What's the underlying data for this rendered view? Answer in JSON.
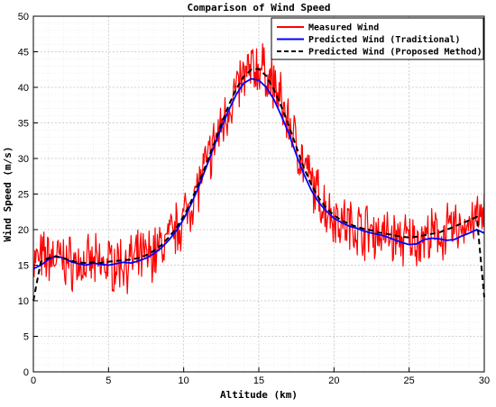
{
  "chart_data": {
    "type": "line",
    "title": "Comparison of Wind Speed",
    "xlabel": "Altitude (km)",
    "ylabel": "Wind Speed (m/s)",
    "xlim": [
      0,
      30
    ],
    "ylim": [
      0,
      50
    ],
    "xticks": [
      0,
      5,
      10,
      15,
      20,
      25,
      30
    ],
    "yticks": [
      0,
      5,
      10,
      15,
      20,
      25,
      30,
      35,
      40,
      45,
      50
    ],
    "grid": true,
    "minor_grid": true,
    "legend_position": "top-right",
    "series": [
      {
        "name": "Measured Wind",
        "color": "#ff0000",
        "style": "solid",
        "x": [
          0,
          0.5,
          1,
          1.5,
          2,
          2.5,
          3,
          3.5,
          4,
          4.5,
          5,
          5.5,
          6,
          6.5,
          7,
          7.5,
          8,
          8.5,
          9,
          9.5,
          10,
          10.5,
          11,
          11.5,
          12,
          12.5,
          13,
          13.5,
          14,
          14.5,
          15,
          15.5,
          16,
          16.5,
          17,
          17.5,
          18,
          18.5,
          19,
          19.5,
          20,
          20.5,
          21,
          21.5,
          22,
          22.5,
          23,
          23.5,
          24,
          24.5,
          25,
          25.5,
          26,
          26.5,
          27,
          27.5,
          28,
          28.5,
          29,
          29.5,
          30
        ],
        "y": [
          15.5,
          15.8,
          16.2,
          16.0,
          15.7,
          15.4,
          15.2,
          15.0,
          15.1,
          15.0,
          15.2,
          15.3,
          15.4,
          15.5,
          15.8,
          16.2,
          16.8,
          17.6,
          18.7,
          20.0,
          21.7,
          23.8,
          26.3,
          29.0,
          31.8,
          34.5,
          37.2,
          39.5,
          41.3,
          42.5,
          42.8,
          42.0,
          40.2,
          37.8,
          35.0,
          32.0,
          29.0,
          26.5,
          24.5,
          23.0,
          22.0,
          21.2,
          20.7,
          20.3,
          20.0,
          19.8,
          19.5,
          19.2,
          18.8,
          18.6,
          18.5,
          18.6,
          18.8,
          19.0,
          19.2,
          19.6,
          20.0,
          20.5,
          21.0,
          21.5,
          21.8
        ],
        "noise_amplitude": 3
      },
      {
        "name": "Predicted Wind (Traditional)",
        "color": "#0000ff",
        "style": "solid",
        "x": [
          0,
          0.5,
          1,
          1.5,
          2,
          2.5,
          3,
          3.5,
          4,
          4.5,
          5,
          5.5,
          6,
          6.5,
          7,
          7.5,
          8,
          8.5,
          9,
          9.5,
          10,
          10.5,
          11,
          11.5,
          12,
          12.5,
          13,
          13.5,
          14,
          14.5,
          15,
          15.5,
          16,
          16.5,
          17,
          17.5,
          18,
          18.5,
          19,
          19.5,
          20,
          20.5,
          21,
          21.5,
          22,
          22.5,
          23,
          23.5,
          24,
          24.5,
          25,
          25.5,
          26,
          26.5,
          27,
          27.5,
          28,
          28.5,
          29,
          29.5,
          30
        ],
        "y": [
          14.5,
          15.0,
          15.8,
          16.3,
          16.0,
          15.5,
          15.2,
          15.0,
          15.3,
          15.1,
          15.0,
          15.2,
          15.4,
          15.3,
          15.6,
          16.0,
          16.6,
          17.4,
          18.5,
          19.8,
          21.5,
          23.6,
          26.0,
          28.8,
          31.6,
          34.3,
          36.8,
          39.0,
          40.6,
          41.2,
          41.0,
          40.0,
          38.3,
          36.0,
          33.5,
          30.5,
          27.8,
          25.5,
          23.8,
          22.6,
          21.6,
          21.0,
          20.5,
          20.2,
          19.8,
          19.5,
          19.3,
          19.0,
          18.6,
          18.2,
          17.9,
          18.0,
          18.6,
          18.8,
          18.7,
          18.5,
          18.6,
          19.1,
          19.5,
          20.0,
          19.5
        ],
        "noise_amplitude": 0
      },
      {
        "name": "Predicted Wind (Proposed Method)",
        "color": "#000000",
        "style": "dashed",
        "x": [
          0,
          0.5,
          1,
          1.5,
          2,
          2.5,
          3,
          3.5,
          4,
          4.5,
          5,
          5.5,
          6,
          6.5,
          7,
          7.5,
          8,
          8.5,
          9,
          9.5,
          10,
          10.5,
          11,
          11.5,
          12,
          12.5,
          13,
          13.5,
          14,
          14.5,
          15,
          15.5,
          16,
          16.5,
          17,
          17.5,
          18,
          18.5,
          19,
          19.5,
          20,
          20.5,
          21,
          21.5,
          22,
          22.5,
          23,
          23.5,
          24,
          24.5,
          25,
          25.5,
          26,
          26.5,
          27,
          27.5,
          28,
          28.5,
          29,
          29.5,
          30
        ],
        "y": [
          10.0,
          15.5,
          16.0,
          16.2,
          16.0,
          15.6,
          15.4,
          15.3,
          15.4,
          15.3,
          15.5,
          15.6,
          15.7,
          15.8,
          16.0,
          16.4,
          17.0,
          17.8,
          18.9,
          20.2,
          21.9,
          24.0,
          26.5,
          29.2,
          32.0,
          34.8,
          37.5,
          39.8,
          41.5,
          42.5,
          42.6,
          41.6,
          39.7,
          37.3,
          34.6,
          31.6,
          28.7,
          26.3,
          24.4,
          23.0,
          22.0,
          21.3,
          20.8,
          20.4,
          20.1,
          19.9,
          19.6,
          19.4,
          19.2,
          19.0,
          18.9,
          19.0,
          19.2,
          19.4,
          19.6,
          20.0,
          20.4,
          20.9,
          21.3,
          21.8,
          10.5
        ],
        "noise_amplitude": 0
      }
    ]
  }
}
